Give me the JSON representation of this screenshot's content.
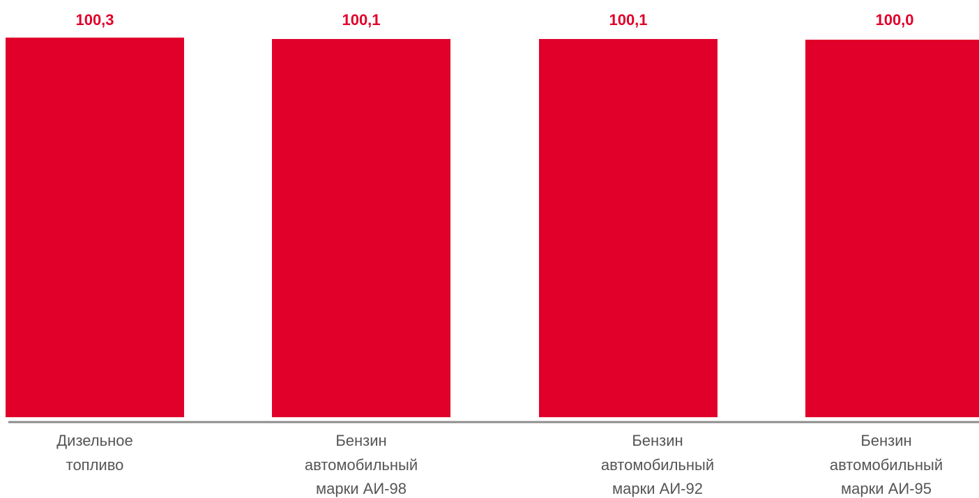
{
  "chart_data": {
    "type": "bar",
    "categories": [
      [
        "Дизельное",
        "топливо"
      ],
      [
        "Бензин",
        "автомобильный",
        "марки АИ-98"
      ],
      [
        "Бензин",
        "автомобильный",
        "марки АИ-92"
      ],
      [
        "Бензин",
        "автомобильный",
        "марки АИ-95"
      ]
    ],
    "values": [
      100.3,
      100.1,
      100.1,
      100.0
    ],
    "value_labels": [
      "100,3",
      "100,1",
      "100,1",
      "100,0"
    ],
    "bar_color": "#e0002a",
    "label_color": "#e0002a",
    "axis_color": "#8c8c8c",
    "category_label_color": "#555555",
    "ylim": [
      0,
      100.3
    ],
    "grid": false,
    "legend": "none"
  }
}
